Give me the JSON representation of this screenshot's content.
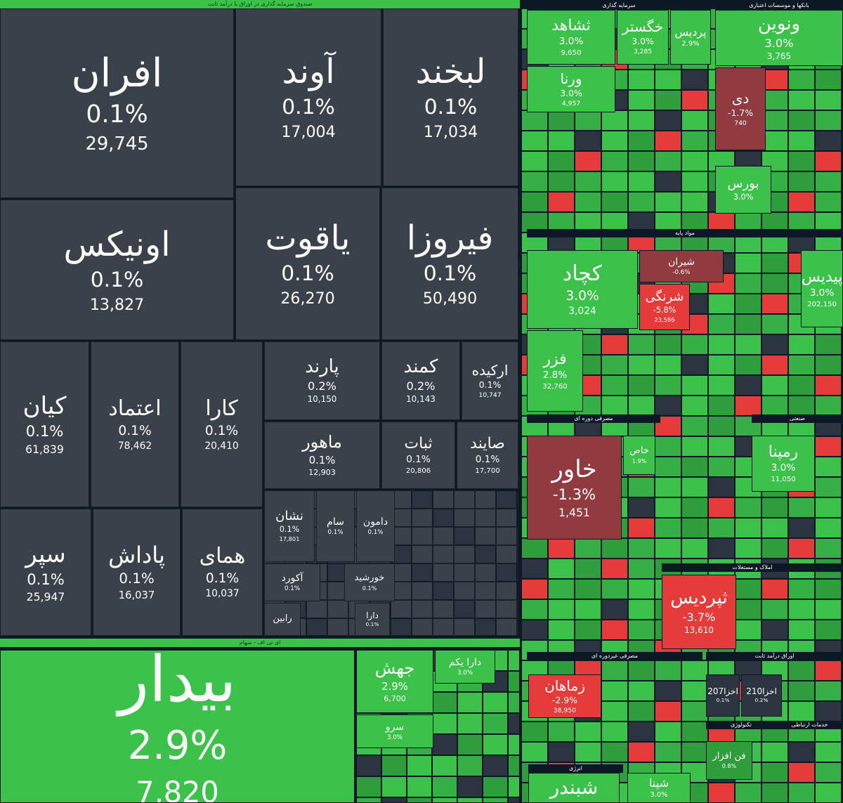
{
  "headers": {
    "fixed_income_funds": "صندوق سرمایه گذاری در اوراق با درآمد ثابت",
    "etf": "ای تی اف - سهام"
  },
  "sections": [
    "سرمایه گذاری",
    "بانکها و موسسات اعتباری",
    "مواد پایه",
    "مصرفی دوره ای",
    "صنعتی",
    "املاک و مستغلات",
    "اوراق درآمد ثابت",
    "مصرفی غیردوره ای",
    "تکنولوژی",
    "خدمات ارتباطی",
    "انرژی"
  ],
  "tiles": [
    {
      "name": "افران",
      "change": "0.1%",
      "value": "29,745"
    },
    {
      "name": "آوند",
      "change": "0.1%",
      "value": "17,004"
    },
    {
      "name": "لبخند",
      "change": "0.1%",
      "value": "17,034"
    },
    {
      "name": "اونیکس",
      "change": "0.1%",
      "value": "13,827"
    },
    {
      "name": "یاقوت",
      "change": "0.1%",
      "value": "26,270"
    },
    {
      "name": "فیروزا",
      "change": "0.1%",
      "value": "50,490"
    },
    {
      "name": "کیان",
      "change": "0.1%",
      "value": "61,839"
    },
    {
      "name": "اعتماد",
      "change": "0.1%",
      "value": "78,462"
    },
    {
      "name": "کارا",
      "change": "0.1%",
      "value": "20,410"
    },
    {
      "name": "پارند",
      "change": "0.2%",
      "value": "10,150"
    },
    {
      "name": "کمند",
      "change": "0.2%",
      "value": "10,143"
    },
    {
      "name": "ارکیده",
      "change": "0.1%",
      "value": "10,747"
    },
    {
      "name": "ماهور",
      "change": "0.1%",
      "value": "12,903"
    },
    {
      "name": "ثبات",
      "change": "0.1%",
      "value": "20,806"
    },
    {
      "name": "صایند",
      "change": "0.1%",
      "value": "17,700"
    },
    {
      "name": "سپر",
      "change": "0.1%",
      "value": "25,947"
    },
    {
      "name": "پاداش",
      "change": "0.1%",
      "value": "16,037"
    },
    {
      "name": "همای",
      "change": "0.1%",
      "value": "10,037"
    },
    {
      "name": "نشان",
      "change": "0.1%",
      "value": "17,801"
    },
    {
      "name": "سام",
      "change": "0.1%"
    },
    {
      "name": "دامون",
      "change": "0.1%"
    },
    {
      "name": "آکورد",
      "change": "0.1%"
    },
    {
      "name": "خورشید",
      "change": "0.1%"
    },
    {
      "name": "رابین"
    },
    {
      "name": "دارا",
      "change": "0.1%"
    },
    {
      "name": "بیدار",
      "change": "2.9%",
      "value": "7,820"
    },
    {
      "name": "جهش",
      "change": "2.9%",
      "value": "6,700"
    },
    {
      "name": "دارا یکم",
      "change": "3.0%"
    },
    {
      "name": "سرو",
      "change": "3.0%"
    },
    {
      "name": "ثشاهد",
      "change": "3.0%",
      "value": "9,650"
    },
    {
      "name": "خگستر",
      "change": "3.0%",
      "value": "3,285"
    },
    {
      "name": "پردیس",
      "change": "2.9%"
    },
    {
      "name": "ونوین",
      "change": "3.0%",
      "value": "3,765"
    },
    {
      "name": "ورنا",
      "change": "3.0%",
      "value": "4,957"
    },
    {
      "name": "دی",
      "change": "-1.7%",
      "value": "740"
    },
    {
      "name": "بورس",
      "change": "3.0%"
    },
    {
      "name": "کچاد",
      "change": "3.0%",
      "value": "3,024"
    },
    {
      "name": "شیران",
      "change": "-0.6%"
    },
    {
      "name": "شرنگی",
      "change": "-5.8%",
      "value": "23,586"
    },
    {
      "name": "پیدیس",
      "change": "3.0%",
      "value": "202,150"
    },
    {
      "name": "فزر",
      "change": "2.8%",
      "value": "32,760"
    },
    {
      "name": "خاور",
      "change": "-1.3%",
      "value": "1,451"
    },
    {
      "name": "خاص",
      "change": "1.9%"
    },
    {
      "name": "رمپنا",
      "change": "3.0%",
      "value": "11,050"
    },
    {
      "name": "ثپردیس",
      "change": "-3.7%",
      "value": "13,610"
    },
    {
      "name": "زماهان",
      "change": "-2.9%",
      "value": "38,950"
    },
    {
      "name": "اخزا207",
      "change": "0.1%"
    },
    {
      "name": "اخزا210",
      "change": "0.2%"
    },
    {
      "name": "شبندر"
    },
    {
      "name": "شپنا",
      "change": "3.0%"
    },
    {
      "name": "فن افزار",
      "change": "0.8%"
    }
  ]
}
